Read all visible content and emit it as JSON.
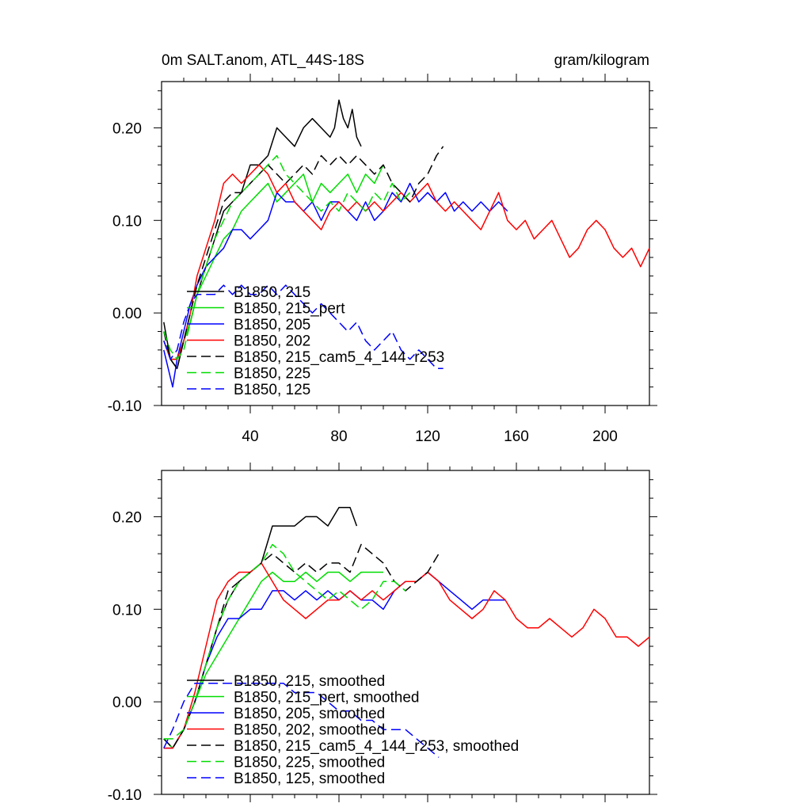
{
  "figure": {
    "title_left": "0m SALT.anom, ATL_44S-18S",
    "title_right": "gram/kilogram"
  },
  "chart_data": [
    {
      "type": "line",
      "panel": "top",
      "title": "0m SALT.anom, ATL_44S-18S",
      "units": "gram/kilogram",
      "xlim": [
        0,
        220
      ],
      "ylim": [
        -0.1,
        0.25
      ],
      "yticks": [
        -0.1,
        0.0,
        0.1,
        0.2
      ],
      "ytick_labels": [
        "-0.10",
        "0.00",
        "0.10",
        "0.20"
      ],
      "xticks": [
        40,
        80,
        120,
        160,
        200
      ],
      "xtick_labels": [
        "40",
        "80",
        "120",
        "160",
        "200"
      ],
      "legend_position": "lower-left",
      "series": [
        {
          "name": "B1850, 215",
          "color": "#000000",
          "dash": "solid",
          "x": [
            1,
            4,
            7,
            10,
            13,
            16,
            20,
            24,
            28,
            32,
            36,
            40,
            44,
            48,
            52,
            56,
            60,
            64,
            68,
            72,
            76,
            78,
            80,
            82,
            84,
            86,
            88,
            90
          ],
          "y": [
            -0.01,
            -0.05,
            -0.06,
            -0.03,
            -0.01,
            0.02,
            0.05,
            0.08,
            0.11,
            0.12,
            0.13,
            0.16,
            0.16,
            0.17,
            0.2,
            0.19,
            0.18,
            0.2,
            0.21,
            0.2,
            0.19,
            0.2,
            0.23,
            0.21,
            0.2,
            0.22,
            0.19,
            0.18
          ]
        },
        {
          "name": "B1850, 215_pert",
          "color": "#00dd00",
          "dash": "solid",
          "x": [
            1,
            4,
            7,
            10,
            13,
            16,
            20,
            24,
            28,
            32,
            36,
            40,
            44,
            48,
            52,
            56,
            60,
            64,
            68,
            72,
            76,
            80,
            84,
            88,
            92,
            96,
            100
          ],
          "y": [
            -0.03,
            -0.05,
            -0.05,
            -0.03,
            -0.01,
            0.02,
            0.04,
            0.06,
            0.08,
            0.09,
            0.11,
            0.12,
            0.13,
            0.14,
            0.12,
            0.13,
            0.14,
            0.15,
            0.12,
            0.14,
            0.13,
            0.14,
            0.15,
            0.13,
            0.15,
            0.14,
            0.16
          ]
        },
        {
          "name": "B1850, 205",
          "color": "#0000ff",
          "dash": "solid",
          "x": [
            1,
            3,
            5,
            7,
            10,
            13,
            16,
            20,
            24,
            28,
            32,
            36,
            40,
            44,
            48,
            52,
            56,
            60,
            64,
            68,
            72,
            76,
            80,
            84,
            88,
            92,
            96,
            100,
            104,
            108,
            112,
            116,
            120,
            124,
            128,
            132,
            136,
            140,
            144,
            148,
            152,
            156
          ],
          "y": [
            -0.04,
            -0.06,
            -0.08,
            -0.05,
            -0.02,
            0.01,
            0.03,
            0.05,
            0.06,
            0.07,
            0.09,
            0.09,
            0.08,
            0.09,
            0.1,
            0.13,
            0.12,
            0.12,
            0.11,
            0.12,
            0.1,
            0.12,
            0.12,
            0.11,
            0.1,
            0.12,
            0.1,
            0.11,
            0.13,
            0.12,
            0.14,
            0.12,
            0.13,
            0.12,
            0.13,
            0.11,
            0.12,
            0.11,
            0.12,
            0.11,
            0.12,
            0.11
          ]
        },
        {
          "name": "B1850, 202",
          "color": "#ff0000",
          "dash": "solid",
          "x": [
            1,
            4,
            7,
            10,
            13,
            16,
            20,
            24,
            28,
            32,
            36,
            40,
            44,
            48,
            52,
            56,
            60,
            64,
            68,
            72,
            76,
            80,
            84,
            88,
            92,
            96,
            100,
            104,
            108,
            112,
            116,
            120,
            124,
            128,
            132,
            136,
            140,
            144,
            148,
            152,
            156,
            160,
            164,
            168,
            172,
            176,
            180,
            184,
            188,
            192,
            196,
            200,
            204,
            208,
            212,
            216,
            220
          ],
          "y": [
            -0.03,
            -0.05,
            -0.05,
            -0.03,
            0.0,
            0.04,
            0.07,
            0.1,
            0.14,
            0.15,
            0.14,
            0.15,
            0.16,
            0.15,
            0.13,
            0.14,
            0.12,
            0.11,
            0.1,
            0.09,
            0.11,
            0.12,
            0.11,
            0.12,
            0.11,
            0.12,
            0.11,
            0.12,
            0.13,
            0.12,
            0.13,
            0.14,
            0.12,
            0.11,
            0.12,
            0.11,
            0.1,
            0.09,
            0.11,
            0.13,
            0.1,
            0.09,
            0.1,
            0.08,
            0.09,
            0.1,
            0.08,
            0.06,
            0.07,
            0.09,
            0.1,
            0.09,
            0.07,
            0.06,
            0.07,
            0.05,
            0.07
          ]
        },
        {
          "name": "B1850, 215_cam5_4_144_r253",
          "color": "#000000",
          "dash": "dashed",
          "x": [
            1,
            4,
            7,
            10,
            13,
            16,
            20,
            24,
            28,
            32,
            36,
            40,
            44,
            48,
            52,
            56,
            60,
            64,
            68,
            72,
            76,
            80,
            84,
            88,
            92,
            96,
            100,
            104,
            108,
            112,
            116,
            120,
            124,
            127
          ],
          "y": [
            -0.02,
            -0.05,
            -0.06,
            -0.03,
            0.0,
            0.03,
            0.06,
            0.09,
            0.12,
            0.13,
            0.13,
            0.14,
            0.15,
            0.16,
            0.15,
            0.14,
            0.15,
            0.16,
            0.15,
            0.17,
            0.16,
            0.17,
            0.16,
            0.17,
            0.16,
            0.15,
            0.16,
            0.14,
            0.13,
            0.12,
            0.14,
            0.15,
            0.17,
            0.18
          ]
        },
        {
          "name": "B1850, 225",
          "color": "#00dd00",
          "dash": "dashed",
          "x": [
            1,
            4,
            7,
            10,
            13,
            16,
            20,
            24,
            28,
            32,
            36,
            40,
            44,
            48,
            52,
            56,
            60,
            64,
            68,
            72,
            76,
            80,
            84,
            88,
            92,
            96,
            100,
            104,
            108,
            112
          ],
          "y": [
            -0.02,
            -0.04,
            -0.05,
            -0.04,
            -0.01,
            0.02,
            0.05,
            0.08,
            0.1,
            0.12,
            0.13,
            0.14,
            0.15,
            0.16,
            0.17,
            0.15,
            0.14,
            0.13,
            0.12,
            0.11,
            0.12,
            0.11,
            0.13,
            0.12,
            0.11,
            0.13,
            0.12,
            0.14,
            0.12,
            0.13
          ]
        },
        {
          "name": "B1850, 125",
          "color": "#0000ff",
          "dash": "dashed",
          "x": [
            1,
            4,
            7,
            10,
            13,
            16,
            20,
            24,
            28,
            32,
            36,
            40,
            44,
            48,
            52,
            56,
            60,
            64,
            68,
            72,
            76,
            80,
            84,
            88,
            92,
            96,
            100,
            104,
            108,
            112,
            116,
            120,
            124,
            127
          ],
          "y": [
            -0.03,
            -0.05,
            -0.04,
            -0.01,
            0.01,
            0.02,
            0.02,
            0.02,
            0.03,
            0.02,
            0.03,
            0.02,
            0.02,
            0.03,
            0.02,
            0.03,
            0.02,
            0.01,
            0.0,
            0.01,
            0.0,
            -0.01,
            -0.02,
            -0.01,
            -0.03,
            -0.04,
            -0.03,
            -0.02,
            -0.04,
            -0.05,
            -0.04,
            -0.05,
            -0.06,
            -0.06
          ]
        }
      ]
    },
    {
      "type": "line",
      "panel": "bottom",
      "xlim": [
        0,
        220
      ],
      "ylim": [
        -0.1,
        0.25
      ],
      "yticks": [
        -0.1,
        0.0,
        0.1,
        0.2
      ],
      "ytick_labels": [
        "-0.10",
        "0.00",
        "0.10",
        "0.20"
      ],
      "legend_position": "lower-left",
      "series": [
        {
          "name": "B1850, 215, smoothed",
          "color": "#000000",
          "dash": "solid",
          "x": [
            1,
            5,
            10,
            15,
            20,
            25,
            30,
            35,
            40,
            45,
            50,
            55,
            60,
            65,
            70,
            75,
            80,
            85,
            88
          ],
          "y": [
            -0.04,
            -0.05,
            -0.03,
            0.0,
            0.04,
            0.08,
            0.11,
            0.13,
            0.14,
            0.15,
            0.19,
            0.19,
            0.19,
            0.2,
            0.2,
            0.19,
            0.21,
            0.21,
            0.19
          ]
        },
        {
          "name": "B1850, 215_pert, smoothed",
          "color": "#00dd00",
          "dash": "solid",
          "x": [
            1,
            5,
            10,
            15,
            20,
            25,
            30,
            35,
            40,
            45,
            50,
            55,
            60,
            65,
            70,
            75,
            80,
            85,
            90,
            95,
            100
          ],
          "y": [
            -0.04,
            -0.05,
            -0.03,
            0.0,
            0.03,
            0.05,
            0.07,
            0.09,
            0.11,
            0.13,
            0.14,
            0.13,
            0.13,
            0.14,
            0.13,
            0.14,
            0.14,
            0.13,
            0.14,
            0.14,
            0.14
          ]
        },
        {
          "name": "B1850, 205, smoothed",
          "color": "#0000ff",
          "dash": "solid",
          "x": [
            1,
            5,
            10,
            15,
            20,
            25,
            30,
            35,
            40,
            45,
            50,
            55,
            60,
            65,
            70,
            75,
            80,
            85,
            90,
            95,
            100,
            105,
            110,
            115,
            120,
            125,
            130,
            135,
            140,
            145,
            150,
            155
          ],
          "y": [
            -0.05,
            -0.05,
            -0.03,
            0.0,
            0.04,
            0.07,
            0.09,
            0.09,
            0.1,
            0.1,
            0.12,
            0.12,
            0.11,
            0.12,
            0.11,
            0.12,
            0.11,
            0.12,
            0.11,
            0.11,
            0.1,
            0.12,
            0.13,
            0.13,
            0.14,
            0.13,
            0.12,
            0.11,
            0.1,
            0.11,
            0.11,
            0.11
          ]
        },
        {
          "name": "B1850, 202, smoothed",
          "color": "#ff0000",
          "dash": "solid",
          "x": [
            1,
            5,
            10,
            15,
            20,
            25,
            30,
            35,
            40,
            45,
            50,
            55,
            60,
            65,
            70,
            75,
            80,
            85,
            90,
            95,
            100,
            105,
            110,
            115,
            120,
            125,
            130,
            135,
            140,
            145,
            150,
            155,
            160,
            165,
            170,
            175,
            180,
            185,
            190,
            195,
            200,
            205,
            210,
            215,
            220
          ],
          "y": [
            -0.05,
            -0.05,
            -0.03,
            0.01,
            0.06,
            0.11,
            0.13,
            0.14,
            0.14,
            0.15,
            0.13,
            0.11,
            0.1,
            0.09,
            0.1,
            0.11,
            0.11,
            0.12,
            0.11,
            0.12,
            0.11,
            0.12,
            0.13,
            0.13,
            0.14,
            0.13,
            0.11,
            0.1,
            0.09,
            0.1,
            0.12,
            0.11,
            0.09,
            0.08,
            0.08,
            0.09,
            0.08,
            0.07,
            0.08,
            0.1,
            0.09,
            0.07,
            0.07,
            0.06,
            0.07
          ]
        },
        {
          "name": "B1850, 215_cam5_4_144_r253, smoothed",
          "color": "#000000",
          "dash": "dashed",
          "x": [
            1,
            5,
            10,
            15,
            20,
            25,
            30,
            35,
            40,
            45,
            50,
            55,
            60,
            65,
            70,
            75,
            80,
            85,
            90,
            95,
            100,
            105,
            110,
            115,
            120,
            125
          ],
          "y": [
            -0.04,
            -0.05,
            -0.03,
            0.0,
            0.04,
            0.08,
            0.12,
            0.13,
            0.14,
            0.15,
            0.16,
            0.15,
            0.14,
            0.15,
            0.14,
            0.15,
            0.15,
            0.14,
            0.17,
            0.16,
            0.15,
            0.13,
            0.12,
            0.13,
            0.14,
            0.16
          ]
        },
        {
          "name": "B1850, 225, smoothed",
          "color": "#00dd00",
          "dash": "dashed",
          "x": [
            1,
            5,
            10,
            15,
            20,
            25,
            30,
            35,
            40,
            45,
            50,
            55,
            60,
            65,
            70,
            75,
            80,
            85,
            90,
            95,
            100,
            105,
            110
          ],
          "y": [
            -0.04,
            -0.04,
            -0.03,
            0.0,
            0.04,
            0.08,
            0.11,
            0.13,
            0.14,
            0.15,
            0.17,
            0.16,
            0.14,
            0.13,
            0.12,
            0.11,
            0.12,
            0.11,
            0.1,
            0.11,
            0.13,
            0.13,
            0.12
          ]
        },
        {
          "name": "B1850, 125, smoothed",
          "color": "#0000ff",
          "dash": "dashed",
          "x": [
            1,
            5,
            10,
            15,
            20,
            25,
            30,
            35,
            40,
            45,
            50,
            55,
            60,
            65,
            70,
            75,
            80,
            85,
            90,
            95,
            100,
            105,
            110,
            115,
            120,
            125
          ],
          "y": [
            -0.05,
            -0.03,
            0.0,
            0.02,
            0.02,
            0.02,
            0.02,
            0.02,
            0.02,
            0.02,
            0.02,
            0.02,
            0.01,
            0.01,
            0.01,
            0.0,
            -0.01,
            -0.01,
            -0.02,
            -0.02,
            -0.03,
            -0.03,
            -0.03,
            -0.04,
            -0.05,
            -0.06
          ]
        }
      ]
    }
  ]
}
